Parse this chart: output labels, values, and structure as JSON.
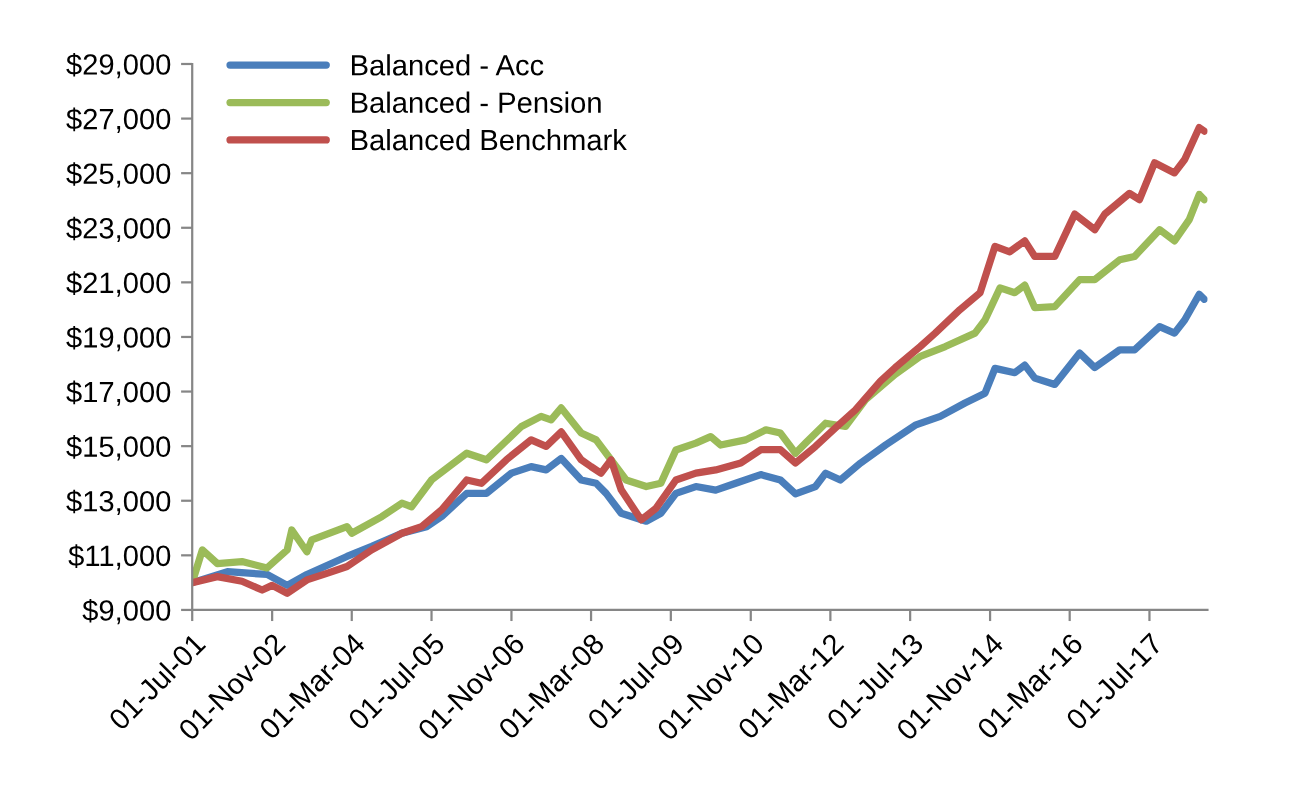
{
  "chart_data": {
    "type": "line",
    "series": [
      {
        "name": "Balanced - Acc",
        "color": "#4a7ebb",
        "x": [
          "2001-07",
          "2002-02",
          "2002-10",
          "2003-02",
          "2003-06",
          "2004-02",
          "2004-07",
          "2005-01",
          "2005-06",
          "2005-09",
          "2006-02",
          "2006-06",
          "2006-11",
          "2007-03",
          "2007-06",
          "2007-09",
          "2008-01",
          "2008-04",
          "2008-06",
          "2008-09",
          "2009-02",
          "2009-05",
          "2009-08",
          "2009-12",
          "2010-04",
          "2010-08",
          "2011-01",
          "2011-05",
          "2011-08",
          "2011-12",
          "2012-02",
          "2012-05",
          "2012-09",
          "2013-02",
          "2013-08",
          "2014-01",
          "2014-06",
          "2014-10",
          "2014-12",
          "2015-04",
          "2015-06",
          "2015-08",
          "2015-12",
          "2016-05",
          "2016-08",
          "2017-01",
          "2017-04",
          "2017-09",
          "2017-12",
          "2018-02",
          "2018-05",
          "2018-06"
        ],
        "values": [
          10000,
          10400,
          10300,
          9900,
          10300,
          10960,
          11330,
          11810,
          12050,
          12420,
          13270,
          13270,
          14010,
          14250,
          14130,
          14550,
          13760,
          13640,
          13270,
          12540,
          12250,
          12540,
          13270,
          13520,
          13390,
          13640,
          13960,
          13760,
          13250,
          13520,
          14010,
          13760,
          14380,
          15040,
          15770,
          16090,
          16580,
          16940,
          17850,
          17690,
          17970,
          17490,
          17260,
          18410,
          17880,
          18530,
          18530,
          19380,
          19140,
          19620,
          20560,
          20380
        ]
      },
      {
        "name": "Balanced - Pension",
        "color": "#9bbb59",
        "x": [
          "2001-07",
          "2001-09",
          "2001-12",
          "2002-05",
          "2002-10",
          "2003-02",
          "2003-03",
          "2003-06",
          "2003-07",
          "2004-02",
          "2004-03",
          "2004-09",
          "2005-01",
          "2005-03",
          "2005-07",
          "2006-02",
          "2006-06",
          "2007-01",
          "2007-05",
          "2007-07",
          "2007-09",
          "2008-01",
          "2008-04",
          "2008-06",
          "2008-10",
          "2009-02",
          "2009-05",
          "2009-08",
          "2009-12",
          "2010-03",
          "2010-05",
          "2010-10",
          "2011-02",
          "2011-05",
          "2011-08",
          "2011-10",
          "2012-02",
          "2012-06",
          "2012-10",
          "2013-04",
          "2013-09",
          "2014-02",
          "2014-08",
          "2014-10",
          "2015-01",
          "2015-04",
          "2015-06",
          "2015-08",
          "2015-12",
          "2016-05",
          "2016-08",
          "2017-01",
          "2017-04",
          "2017-09",
          "2017-12",
          "2018-03",
          "2018-05",
          "2018-06"
        ],
        "values": [
          10000,
          11200,
          10700,
          10770,
          10540,
          11200,
          11930,
          11130,
          11570,
          12050,
          11810,
          12420,
          12910,
          12780,
          13760,
          14740,
          14500,
          15720,
          16090,
          15960,
          16400,
          15480,
          15230,
          14740,
          13760,
          13520,
          13640,
          14860,
          15110,
          15350,
          15040,
          15230,
          15600,
          15480,
          14740,
          15110,
          15840,
          15720,
          16700,
          17630,
          18290,
          18650,
          19140,
          19620,
          20800,
          20620,
          20900,
          20070,
          20110,
          21100,
          21100,
          21830,
          21950,
          22930,
          22520,
          23300,
          24220,
          24030
        ]
      },
      {
        "name": "Balanced Benchmark",
        "color": "#c0504d",
        "x": [
          "2001-07",
          "2001-12",
          "2002-05",
          "2002-09",
          "2002-11",
          "2003-02",
          "2003-06",
          "2003-10",
          "2004-02",
          "2004-07",
          "2005-01",
          "2005-05",
          "2005-09",
          "2006-02",
          "2006-05",
          "2006-10",
          "2007-03",
          "2007-06",
          "2007-09",
          "2008-01",
          "2008-03",
          "2008-05",
          "2008-07",
          "2008-09",
          "2009-01",
          "2009-04",
          "2009-08",
          "2009-12",
          "2010-04",
          "2010-09",
          "2011-01",
          "2011-05",
          "2011-08",
          "2011-12",
          "2012-04",
          "2012-08",
          "2013-01",
          "2013-04",
          "2013-09",
          "2013-12",
          "2014-05",
          "2014-09",
          "2014-12",
          "2015-03",
          "2015-06",
          "2015-08",
          "2015-12",
          "2016-04",
          "2016-08",
          "2016-10",
          "2017-03",
          "2017-05",
          "2017-08",
          "2017-12",
          "2018-02",
          "2018-05",
          "2018-06"
        ],
        "values": [
          10000,
          10220,
          10050,
          9730,
          9900,
          9610,
          10100,
          10340,
          10590,
          11200,
          11810,
          12050,
          12670,
          13760,
          13640,
          14500,
          15230,
          14990,
          15520,
          14500,
          14250,
          14010,
          14500,
          13400,
          12300,
          12720,
          13760,
          14010,
          14130,
          14380,
          14870,
          14870,
          14380,
          14990,
          15670,
          16330,
          17380,
          17880,
          18650,
          19140,
          20000,
          20620,
          22320,
          22120,
          22520,
          21950,
          21950,
          23500,
          22930,
          23500,
          24260,
          24030,
          25380,
          25010,
          25500,
          26670,
          26540
        ]
      }
    ],
    "xlim": [
      "2001-07-01",
      "2018-06-20"
    ],
    "xticks": [
      {
        "value": "2001-07-01",
        "label": "01-Jul-01"
      },
      {
        "value": "2002-11-01",
        "label": "01-Nov-02"
      },
      {
        "value": "2004-03-01",
        "label": "01-Mar-04"
      },
      {
        "value": "2005-07-01",
        "label": "01-Jul-05"
      },
      {
        "value": "2006-11-01",
        "label": "01-Nov-06"
      },
      {
        "value": "2008-03-01",
        "label": "01-Mar-08"
      },
      {
        "value": "2009-07-01",
        "label": "01-Jul-09"
      },
      {
        "value": "2010-11-01",
        "label": "01-Nov-10"
      },
      {
        "value": "2012-03-01",
        "label": "01-Mar-12"
      },
      {
        "value": "2013-07-01",
        "label": "01-Jul-13"
      },
      {
        "value": "2014-11-01",
        "label": "01-Nov-14"
      },
      {
        "value": "2016-03-01",
        "label": "01-Mar-16"
      },
      {
        "value": "2017-07-01",
        "label": "01-Jul-17"
      }
    ],
    "ylim": [
      9000,
      29000
    ],
    "yticks": [
      {
        "value": 9000,
        "label": "$9,000"
      },
      {
        "value": 11000,
        "label": "$11,000"
      },
      {
        "value": 13000,
        "label": "$13,000"
      },
      {
        "value": 15000,
        "label": "$15,000"
      },
      {
        "value": 17000,
        "label": "$17,000"
      },
      {
        "value": 19000,
        "label": "$19,000"
      },
      {
        "value": 21000,
        "label": "$21,000"
      },
      {
        "value": 23000,
        "label": "$23,000"
      },
      {
        "value": 25000,
        "label": "$25,000"
      },
      {
        "value": 27000,
        "label": "$27,000"
      },
      {
        "value": 29000,
        "label": "$29,000"
      }
    ],
    "grid": false,
    "legend": "top left",
    "marker": "none",
    "line_style": "solid"
  }
}
